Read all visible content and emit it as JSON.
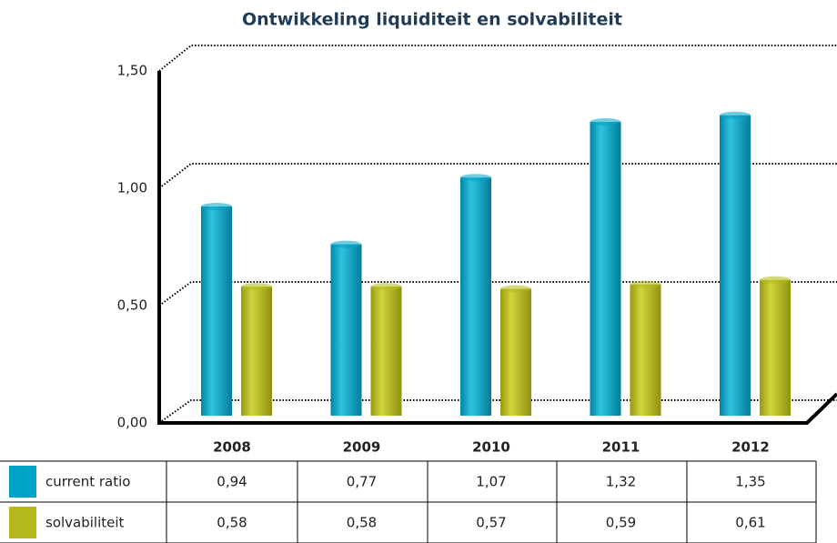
{
  "chart_data": {
    "type": "bar",
    "title": "Ontwikkeling liquiditeit en solvabiliteit",
    "categories": [
      "2008",
      "2009",
      "2010",
      "2011",
      "2012"
    ],
    "series": [
      {
        "name": "current ratio",
        "color": "#00a3c4",
        "values": [
          0.94,
          0.77,
          1.07,
          1.32,
          1.35
        ],
        "value_labels": [
          "0,94",
          "0,77",
          "1,07",
          "1,32",
          "1,35"
        ]
      },
      {
        "name": "solvabiliteit",
        "color": "#b5b91b",
        "values": [
          0.58,
          0.58,
          0.57,
          0.59,
          0.61
        ],
        "value_labels": [
          "0,58",
          "0,58",
          "0,57",
          "0,59",
          "0,61"
        ]
      }
    ],
    "ylim": [
      0,
      1.5
    ],
    "yticks": [
      {
        "value": 0,
        "label": "0,00"
      },
      {
        "value": 0.5,
        "label": "0,50"
      },
      {
        "value": 1,
        "label": "1,00"
      },
      {
        "value": 1.5,
        "label": "1,50"
      }
    ],
    "grid": true
  }
}
